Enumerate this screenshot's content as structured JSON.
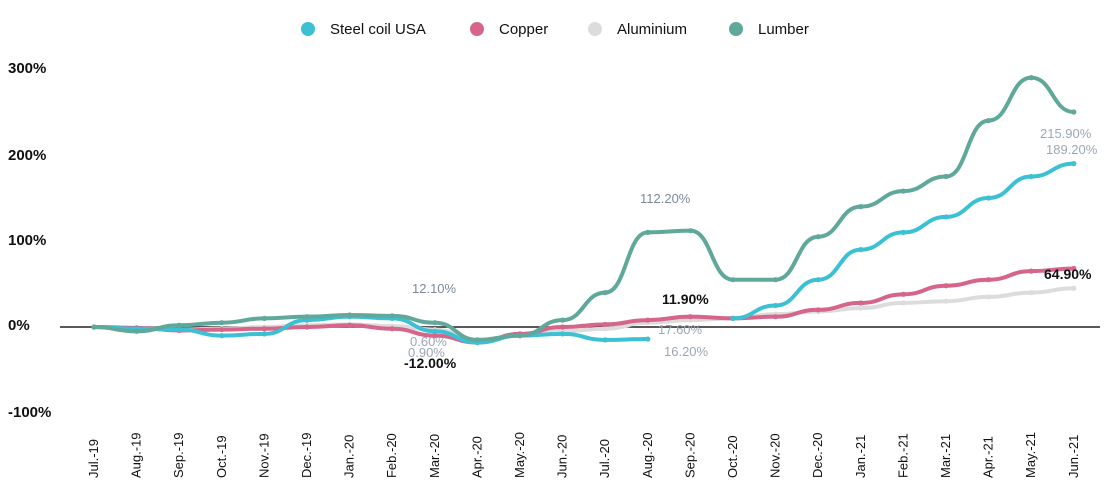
{
  "chart_data": {
    "type": "line",
    "categories": [
      "Jul.-19",
      "Aug.-19",
      "Sep.-19",
      "Oct.-19",
      "Nov.-19",
      "Dec.-19",
      "Jan.-20",
      "Feb.-20",
      "Mar.-20",
      "Apr.-20",
      "May.-20",
      "Jun.-20",
      "Jul.-20",
      "Aug.-20",
      "Sep.-20",
      "Oct.-20",
      "Nov.-20",
      "Dec.-20",
      "Jan.-21",
      "Feb.-21",
      "Mar.-21",
      "Apr.-21",
      "May.-21",
      "Jun.-21"
    ],
    "y_ticks": [
      "300%",
      "200%",
      "100%",
      "0%",
      "-100%"
    ],
    "ylim": [
      -100,
      300
    ],
    "grid": false,
    "legend_position": "top-center",
    "series": [
      {
        "name": "Steel coil USA",
        "color": "#3cc0d4",
        "values": [
          0,
          -2,
          -3,
          -10,
          -8,
          8,
          12,
          10,
          -5,
          -18,
          -10,
          -8,
          -15,
          -14,
          null,
          null,
          null,
          null,
          null,
          null,
          null,
          null,
          null,
          null
        ]
      },
      {
        "name": "Copper",
        "color": "#d6658a",
        "values": [
          0,
          -1,
          -4,
          -3,
          -2,
          0,
          2,
          -2,
          -10,
          -18,
          -8,
          0,
          3,
          8,
          12,
          10,
          12,
          20,
          28,
          38,
          48,
          55,
          65,
          68
        ]
      },
      {
        "name": "Aluminium",
        "color": "#dcdcdc",
        "values": [
          0,
          -1,
          -3,
          -2,
          0,
          2,
          3,
          1,
          -3,
          -15,
          -10,
          -5,
          -2,
          5,
          8,
          10,
          15,
          18,
          22,
          28,
          30,
          35,
          40,
          45
        ]
      },
      {
        "name": "Lumber",
        "color": "#5fa89a",
        "values": [
          0,
          -5,
          2,
          5,
          10,
          12,
          14,
          13,
          5,
          -15,
          -10,
          8,
          40,
          110,
          112,
          55,
          55,
          105,
          140,
          158,
          175,
          240,
          290,
          250
        ]
      },
      {
        "name": "Steel coil USA (continued)",
        "color": "#3cc0d4",
        "values": [
          null,
          null,
          null,
          null,
          null,
          null,
          null,
          null,
          null,
          null,
          null,
          null,
          null,
          null,
          null,
          10,
          25,
          55,
          90,
          110,
          128,
          150,
          175,
          190
        ]
      }
    ],
    "annotations": [
      {
        "text": "12.10%",
        "color": "#7a8a9c"
      },
      {
        "text": "0.60%",
        "color": "#9aa8b6"
      },
      {
        "text": "0.90%",
        "color": "#9aa8b6"
      },
      {
        "text": "-12.00%",
        "color": "#111111"
      },
      {
        "text": "112.20%",
        "color": "#7a8a9c"
      },
      {
        "text": "11.90%",
        "color": "#4a3a40"
      },
      {
        "text": "17.60%",
        "color": "#9aa8b6"
      },
      {
        "text": "16.20%",
        "color": "#9aa8b6"
      },
      {
        "text": "64.90%",
        "color": "#4a3a40"
      },
      {
        "text": "215.90%",
        "color": "#9aa8b6"
      },
      {
        "text": "189.20%",
        "color": "#9aa8b6"
      }
    ]
  }
}
